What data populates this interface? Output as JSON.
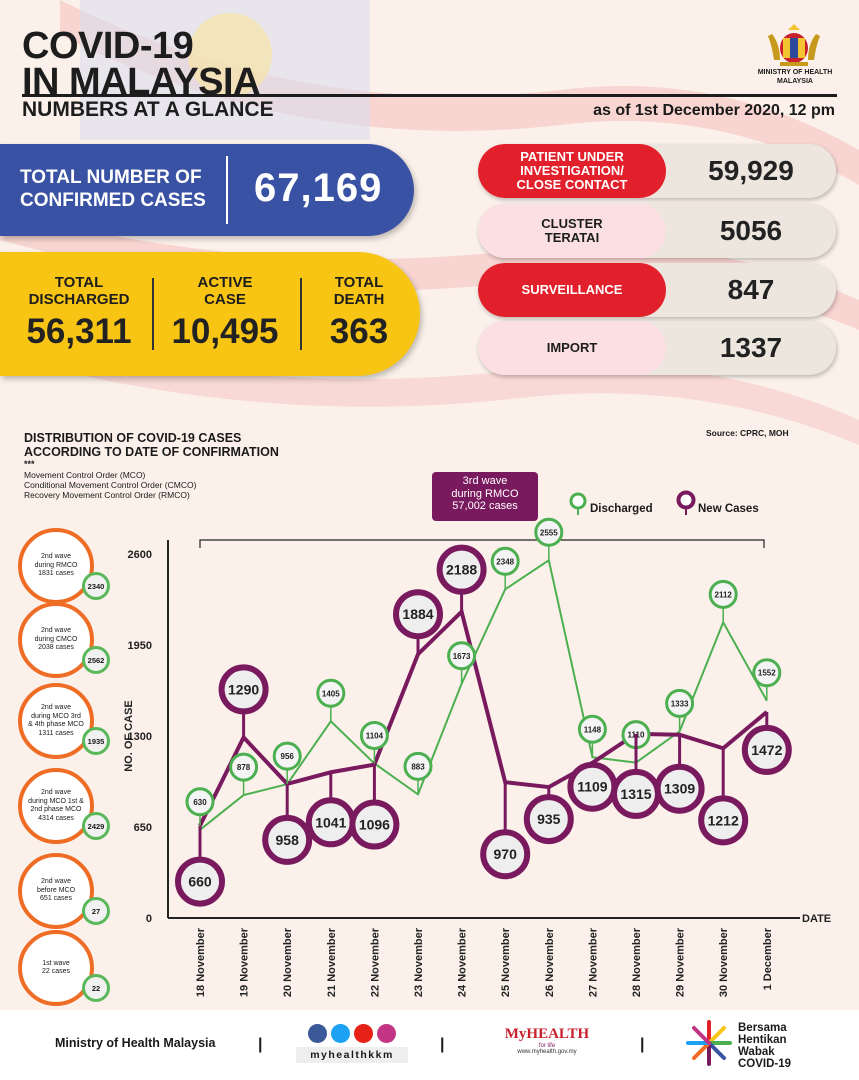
{
  "header": {
    "title_line1": "COVID-19",
    "title_line2": "IN MALAYSIA",
    "subtitle": "NUMBERS AT A GLANCE",
    "as_of": "as of 1st December 2020, 12 pm",
    "ministry_line1": "MINISTRY OF HEALTH",
    "ministry_line2": "MALAYSIA"
  },
  "totals": {
    "confirmed_label_line1": "TOTAL NUMBER OF",
    "confirmed_label_line2": "CONFIRMED CASES",
    "confirmed_value": "67,169",
    "discharged_label_line1": "TOTAL",
    "discharged_label_line2": "DISCHARGED",
    "discharged_value": "56,311",
    "active_label_line1": "ACTIVE",
    "active_label_line2": "CASE",
    "active_value": "10,495",
    "death_label_line1": "TOTAL",
    "death_label_line2": "DEATH",
    "death_value": "363"
  },
  "categories": [
    {
      "label_line1": "PATIENT UNDER",
      "label_line2": "INVESTIGATION/",
      "label_line3": "CLOSE CONTACT",
      "value": "59,929"
    },
    {
      "label_line1": "CLUSTER",
      "label_line2": "TERATAI",
      "label_line3": "",
      "value": "5056"
    },
    {
      "label_line1": "SURVEILLANCE",
      "label_line2": "",
      "label_line3": "",
      "value": "847"
    },
    {
      "label_line1": "IMPORT",
      "label_line2": "",
      "label_line3": "",
      "value": "1337"
    }
  ],
  "distribution": {
    "title_line1": "DISTRIBUTION OF COVID-19 CASES",
    "title_line2": "ACCORDING TO DATE OF CONFIRMATION",
    "dots": "***",
    "legend_line1": "Movement Control Order (MCO)",
    "legend_line2": "Conditional Movement Control Order (CMCO)",
    "legend_line3": "Recovery Movement Control Order (RMCO)",
    "source": "Source: CPRC, MOH",
    "wave3_line1": "3rd wave",
    "wave3_line2": "during RMCO",
    "wave3_line3": "57,002 cases",
    "legend_discharged": "Discharged",
    "legend_new": "New Cases"
  },
  "waves": [
    {
      "line1": "2nd wave",
      "line2": "during RMCO",
      "line3": "1831 cases",
      "line4": "",
      "discharged": "2340"
    },
    {
      "line1": "2nd wave",
      "line2": "during CMCO",
      "line3": "2038 cases",
      "line4": "",
      "discharged": "2562"
    },
    {
      "line1": "2nd wave",
      "line2": "during MCO 3rd",
      "line3": "& 4th phase MCO",
      "line4": "1311 cases",
      "discharged": "1935"
    },
    {
      "line1": "2nd wave",
      "line2": "during MCO 1st &",
      "line3": "2nd phase MCO",
      "line4": "4314 cases",
      "discharged": "2429"
    },
    {
      "line1": "2nd wave",
      "line2": "before MCO",
      "line3": "651 cases",
      "line4": "",
      "discharged": "27"
    },
    {
      "line1": "1st wave",
      "line2": "22 cases",
      "line3": "",
      "line4": "",
      "discharged": "22"
    }
  ],
  "chart_data": {
    "type": "line",
    "title": "DISTRIBUTION OF COVID-19 CASES ACCORDING TO DATE OF CONFIRMATION",
    "xlabel": "DATE",
    "ylabel": "NO. OF CASE",
    "ylim": [
      0,
      2600
    ],
    "yticks": [
      "0",
      "650",
      "1300",
      "1950",
      "2600"
    ],
    "categories": [
      "18 November",
      "19 November",
      "20 November",
      "21 November",
      "22 November",
      "23 November",
      "24 November",
      "25 November",
      "26 November",
      "27 November",
      "28 November",
      "29 November",
      "30 November",
      "1 December"
    ],
    "series": [
      {
        "name": "Discharged",
        "color": "#4caf50",
        "values": [
          630,
          878,
          956,
          1405,
          1104,
          883,
          1673,
          2348,
          2555,
          1148,
          1110,
          1333,
          2112,
          1552
        ]
      },
      {
        "name": "New Cases",
        "color": "#7a1a5e",
        "values": [
          660,
          1290,
          958,
          1041,
          1096,
          1884,
          2188,
          970,
          935,
          1109,
          1315,
          1309,
          1212,
          1472
        ]
      }
    ]
  },
  "footer": {
    "ministry": "Ministry of Health Malaysia",
    "sep": "|",
    "handle": "myhealthkkm",
    "myhealth": "MyHEALTH",
    "myhealth_tag": "for life",
    "myhealth_url": "www.myhealth.gov.my",
    "bersama_line1": "Bersama",
    "bersama_line2": "Hentikan",
    "bersama_line3": "Wabak",
    "bersama_line4": "COVID-19"
  },
  "colors": {
    "blue": "#3a52a3",
    "yellow": "#f8c514",
    "red": "#e2202b",
    "pink": "#fbdfe2",
    "purple": "#7a1a5e",
    "green": "#4caf50",
    "orange": "#ef6c25"
  }
}
